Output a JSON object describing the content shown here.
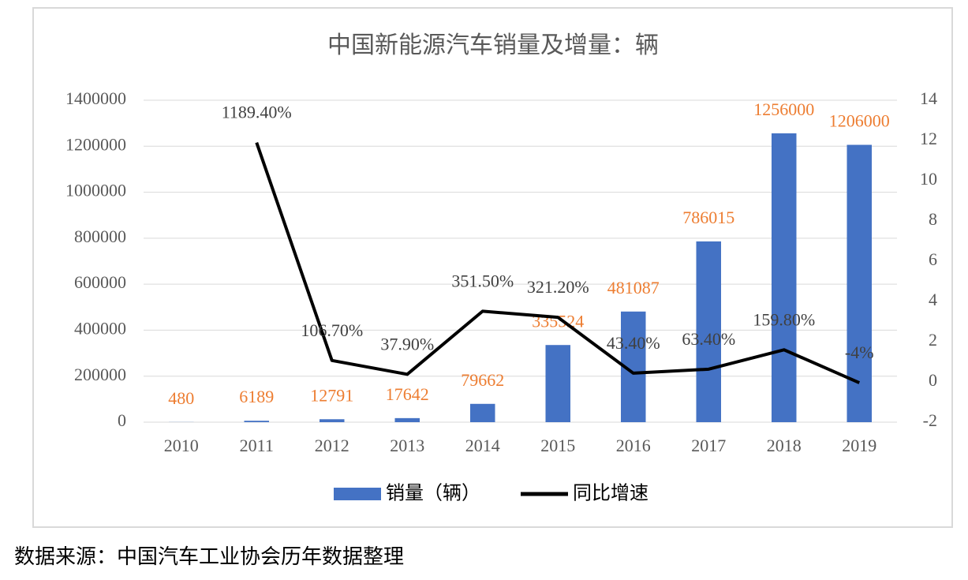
{
  "chart_data": {
    "type": "bar-line",
    "title": "中国新能源汽车销量及增量：辆",
    "categories": [
      "2010",
      "2011",
      "2012",
      "2013",
      "2014",
      "2015",
      "2016",
      "2017",
      "2018",
      "2019"
    ],
    "series": [
      {
        "name": "销量（辆）",
        "color": "#4472C4",
        "type": "bar",
        "label_color": "#ED7D31",
        "values": [
          480,
          6189,
          12791,
          17642,
          79662,
          335524,
          481087,
          786015,
          1256000,
          1206000
        ]
      },
      {
        "name": "同比增速",
        "color": "#000000",
        "type": "line",
        "axis": "y2",
        "values": [
          null,
          11.894,
          1.067,
          0.379,
          3.515,
          3.212,
          0.434,
          0.634,
          1.598,
          -0.04
        ],
        "value_labels": [
          null,
          "1189.40%",
          "106.70%",
          "37.90%",
          "351.50%",
          "321.20%",
          "43.40%",
          "63.40%",
          "159.80%",
          "-4%"
        ]
      }
    ],
    "ylim": [
      0,
      1400000
    ],
    "yticks": [
      0,
      200000,
      400000,
      600000,
      800000,
      1000000,
      1200000,
      1400000
    ],
    "y2lim": [
      -2,
      14
    ],
    "y2ticks": [
      -2,
      0,
      2,
      4,
      6,
      8,
      10,
      12,
      14
    ],
    "grid": true,
    "legend": "bottom"
  },
  "footer": "数据来源：中国汽车工业协会历年数据整理"
}
